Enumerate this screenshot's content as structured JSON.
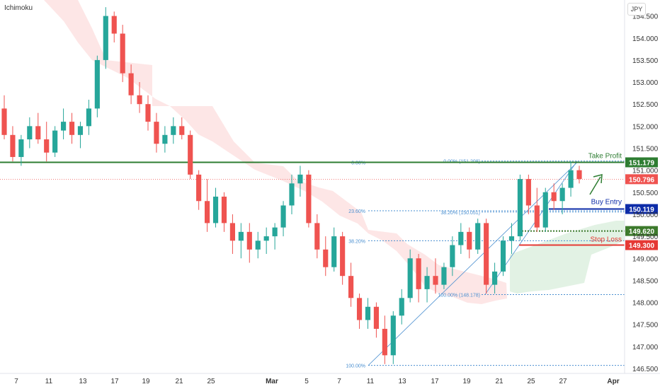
{
  "indicator_label": "Ichimoku",
  "currency": "JPY",
  "colors": {
    "bull": "#26a69a",
    "bear": "#ef5350",
    "cloud_bear": "#fde2e2",
    "cloud_bull": "#dff1e1",
    "take_profit": "#2e7d32",
    "buy_entry": "#0d2ca8",
    "stop_loss": "#e53935",
    "support": "#3d7a2c",
    "fib": "#4a8fd0",
    "current": "#ef5350"
  },
  "chart_data": {
    "type": "candlestick",
    "instrument_hint": "JPY",
    "ylim": [
      146.5,
      154.8
    ],
    "y_ticks": [
      "146.500",
      "147.000",
      "147.500",
      "148.000",
      "148.500",
      "149.000",
      "149.500",
      "150.000",
      "150.500",
      "151.000",
      "151.500",
      "152.000",
      "152.500",
      "153.000",
      "153.500",
      "154.000",
      "154.500"
    ],
    "x_ticks": [
      "7",
      "11",
      "13",
      "17",
      "19",
      "21",
      "25",
      "Mar",
      "5",
      "7",
      "11",
      "13",
      "17",
      "19",
      "21",
      "25",
      "27",
      "Apr"
    ],
    "levels": [
      {
        "name": "Take Profit",
        "price": "151.179",
        "value": 151.179
      },
      {
        "name": "Buy Entry",
        "price": "150.119",
        "value": 150.119
      },
      {
        "name": "",
        "price": "149.620",
        "value": 149.62
      },
      {
        "name": "Stop Loss",
        "price": "149.300",
        "value": 149.3
      }
    ],
    "current_price": {
      "price": "150.796",
      "value": 150.796
    },
    "fib_left": [
      {
        "label": "0.00%",
        "value": 151.179
      },
      {
        "label": "23.60%",
        "value": 150.08
      },
      {
        "label": "38.20%",
        "value": 149.4
      },
      {
        "label": "100.00%",
        "value": 146.57
      }
    ],
    "fib_right": [
      {
        "label": "0.00% (151.208)",
        "value": 151.208
      },
      {
        "label": "38.20% (150.051)",
        "value": 150.051
      },
      {
        "label": "100.00% (148.178)",
        "value": 148.178
      }
    ],
    "candle_ohlc": [
      [
        152.4,
        152.7,
        151.7,
        151.8
      ],
      [
        151.8,
        152.0,
        151.2,
        151.3
      ],
      [
        151.3,
        151.8,
        151.1,
        151.7
      ],
      [
        151.7,
        152.2,
        151.5,
        152.0
      ],
      [
        152.0,
        152.3,
        151.6,
        151.7
      ],
      [
        151.7,
        152.1,
        151.2,
        151.4
      ],
      [
        151.4,
        152.0,
        151.3,
        151.9
      ],
      [
        151.9,
        152.4,
        151.7,
        152.1
      ],
      [
        152.1,
        152.3,
        151.6,
        151.8
      ],
      [
        151.8,
        152.1,
        151.5,
        152.0
      ],
      [
        152.0,
        152.6,
        151.8,
        152.4
      ],
      [
        152.4,
        153.6,
        152.2,
        153.5
      ],
      [
        153.5,
        154.7,
        153.3,
        154.5
      ],
      [
        154.5,
        154.6,
        153.9,
        154.1
      ],
      [
        154.1,
        154.3,
        153.0,
        153.2
      ],
      [
        153.2,
        153.4,
        152.5,
        152.7
      ],
      [
        152.7,
        153.0,
        152.3,
        152.5
      ],
      [
        152.5,
        152.7,
        151.9,
        152.1
      ],
      [
        152.1,
        152.3,
        151.4,
        151.6
      ],
      [
        151.6,
        152.0,
        151.4,
        151.8
      ],
      [
        151.8,
        152.2,
        151.6,
        152.0
      ],
      [
        152.0,
        152.2,
        151.7,
        151.8
      ],
      [
        151.8,
        151.9,
        150.8,
        150.9
      ],
      [
        150.9,
        151.0,
        150.1,
        150.3
      ],
      [
        150.3,
        150.8,
        149.6,
        149.8
      ],
      [
        149.8,
        150.6,
        149.7,
        150.4
      ],
      [
        150.4,
        150.5,
        149.6,
        149.8
      ],
      [
        149.8,
        150.0,
        149.1,
        149.4
      ],
      [
        149.4,
        149.8,
        149.0,
        149.6
      ],
      [
        149.6,
        149.8,
        148.9,
        149.2
      ],
      [
        149.2,
        149.6,
        149.0,
        149.4
      ],
      [
        149.4,
        149.7,
        149.1,
        149.5
      ],
      [
        149.5,
        149.8,
        149.2,
        149.7
      ],
      [
        149.7,
        150.3,
        149.5,
        150.2
      ],
      [
        150.2,
        150.9,
        150.0,
        150.7
      ],
      [
        150.7,
        151.1,
        150.4,
        150.9
      ],
      [
        150.9,
        151.0,
        149.7,
        149.8
      ],
      [
        149.8,
        150.0,
        149.0,
        149.2
      ],
      [
        149.2,
        149.5,
        148.6,
        148.8
      ],
      [
        148.8,
        149.7,
        148.7,
        149.5
      ],
      [
        149.5,
        149.6,
        148.4,
        148.6
      ],
      [
        148.6,
        148.9,
        147.9,
        148.1
      ],
      [
        148.1,
        148.2,
        147.4,
        147.6
      ],
      [
        147.6,
        148.1,
        147.4,
        147.9
      ],
      [
        147.9,
        148.0,
        147.2,
        147.4
      ],
      [
        147.4,
        147.7,
        146.6,
        146.8
      ],
      [
        146.8,
        147.8,
        146.6,
        147.7
      ],
      [
        147.7,
        148.3,
        147.5,
        148.1
      ],
      [
        148.1,
        149.2,
        148.0,
        149.0
      ],
      [
        149.0,
        149.1,
        148.0,
        148.3
      ],
      [
        148.3,
        148.8,
        148.0,
        148.6
      ],
      [
        148.6,
        149.0,
        148.2,
        148.4
      ],
      [
        148.4,
        148.9,
        148.3,
        148.8
      ],
      [
        148.8,
        149.5,
        148.6,
        149.3
      ],
      [
        149.3,
        149.8,
        149.1,
        149.6
      ],
      [
        149.6,
        149.7,
        149.0,
        149.2
      ],
      [
        149.2,
        149.9,
        149.1,
        149.8
      ],
      [
        149.8,
        149.9,
        148.2,
        148.4
      ],
      [
        148.4,
        148.9,
        148.2,
        148.7
      ],
      [
        148.7,
        149.5,
        148.6,
        149.4
      ],
      [
        149.4,
        149.8,
        149.1,
        149.5
      ],
      [
        149.5,
        150.9,
        149.4,
        150.8
      ],
      [
        150.8,
        150.9,
        150.0,
        150.2
      ],
      [
        150.2,
        150.6,
        149.6,
        149.7
      ],
      [
        149.7,
        150.6,
        149.6,
        150.5
      ],
      [
        150.5,
        150.7,
        150.1,
        150.3
      ],
      [
        150.3,
        150.7,
        150.0,
        150.6
      ],
      [
        150.6,
        151.2,
        150.4,
        151.0
      ],
      [
        151.0,
        151.1,
        150.7,
        150.8
      ]
    ]
  }
}
